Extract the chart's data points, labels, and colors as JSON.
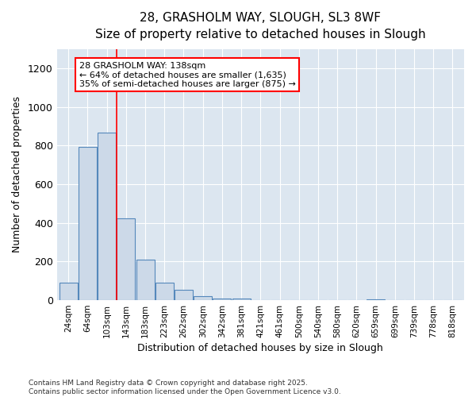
{
  "title_line1": "28, GRASHOLM WAY, SLOUGH, SL3 8WF",
  "title_line2": "Size of property relative to detached houses in Slough",
  "xlabel": "Distribution of detached houses by size in Slough",
  "ylabel": "Number of detached properties",
  "categories": [
    "24sqm",
    "64sqm",
    "103sqm",
    "143sqm",
    "183sqm",
    "223sqm",
    "262sqm",
    "302sqm",
    "342sqm",
    "381sqm",
    "421sqm",
    "461sqm",
    "500sqm",
    "540sqm",
    "580sqm",
    "620sqm",
    "659sqm",
    "699sqm",
    "739sqm",
    "778sqm",
    "818sqm"
  ],
  "values": [
    90,
    793,
    868,
    422,
    210,
    90,
    53,
    20,
    8,
    8,
    0,
    0,
    0,
    0,
    0,
    0,
    5,
    0,
    0,
    0,
    2
  ],
  "bar_color": "#ccd9e8",
  "bar_edge_color": "#5588bb",
  "annotation_text_line1": "28 GRASHOLM WAY: 138sqm",
  "annotation_text_line2": "← 64% of detached houses are smaller (1,635)",
  "annotation_text_line3": "35% of semi-detached houses are larger (875) →",
  "annotation_box_color": "white",
  "annotation_box_edge_color": "red",
  "vline_color": "red",
  "ylim": [
    0,
    1300
  ],
  "yticks": [
    0,
    200,
    400,
    600,
    800,
    1000,
    1200
  ],
  "plot_bg_color": "#dce6f0",
  "fig_bg_color": "#ffffff",
  "footer_line1": "Contains HM Land Registry data © Crown copyright and database right 2025.",
  "footer_line2": "Contains public sector information licensed under the Open Government Licence v3.0."
}
